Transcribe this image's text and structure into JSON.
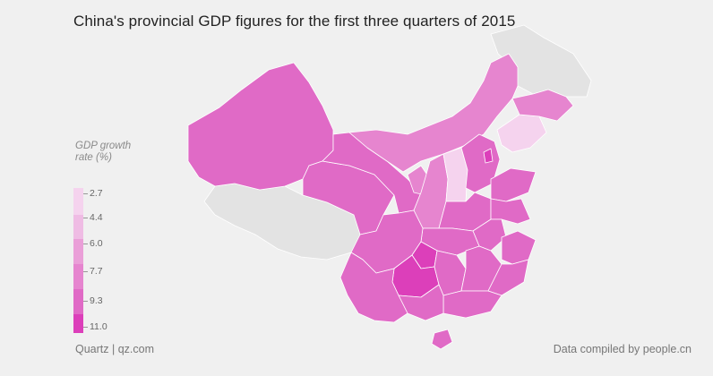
{
  "title": "China's provincial GDP figures for the first three quarters of 2015",
  "legend": {
    "title_line1": "GDP growth",
    "title_line2": "rate (%)",
    "ticks": [
      "2.7",
      "4.4",
      "6.0",
      "7.7",
      "9.3",
      "11.0"
    ],
    "bins": [
      {
        "color": "#f5d3ee"
      },
      {
        "color": "#efbce4"
      },
      {
        "color": "#ea9fd8"
      },
      {
        "color": "#e685cf"
      },
      {
        "color": "#e06ac6"
      },
      {
        "color": "#dc3fba"
      }
    ]
  },
  "colors": {
    "no_data": "#e3e3e3",
    "background": "#f0f0f0"
  },
  "footer": {
    "source": "Quartz | qz.com",
    "credit": "Data compiled by people.cn"
  }
}
